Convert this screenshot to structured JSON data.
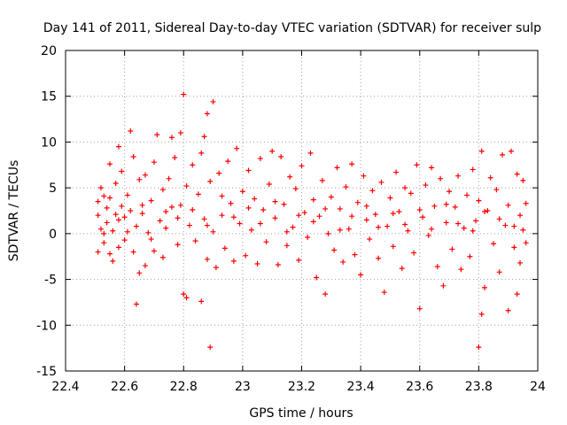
{
  "chart_data": {
    "type": "scatter",
    "title": "Day 141 of 2011, Sidereal Day-to-day VTEC variation (SDTVAR) for receiver sulp",
    "xlabel": "GPS time / hours",
    "ylabel": "SDTVAR / TECUs",
    "xlim": [
      22.4,
      24
    ],
    "ylim": [
      -15,
      20
    ],
    "xticks": [
      22.4,
      22.6,
      22.8,
      23,
      23.2,
      23.4,
      23.6,
      23.8,
      24
    ],
    "xtick_labels": [
      "22.4",
      "22.6",
      "22.8",
      "23",
      "23.2",
      "23.4",
      "23.6",
      "23.8",
      "24"
    ],
    "yticks": [
      -15,
      -10,
      -5,
      0,
      5,
      10,
      15,
      20
    ],
    "ytick_labels": [
      "-15",
      "-10",
      "-5",
      "0",
      "5",
      "10",
      "15",
      "20"
    ],
    "grid": true,
    "marker": "plus",
    "color": "#ff0000",
    "series": [
      {
        "name": "SDTVAR",
        "points": [
          [
            22.51,
            3.5
          ],
          [
            22.51,
            2.0
          ],
          [
            22.51,
            -2.0
          ],
          [
            22.52,
            5.0
          ],
          [
            22.52,
            0.5
          ],
          [
            22.53,
            4.1
          ],
          [
            22.53,
            -1.0
          ],
          [
            22.54,
            2.8
          ],
          [
            22.54,
            1.2
          ],
          [
            22.55,
            7.6
          ],
          [
            22.55,
            3.9
          ],
          [
            22.55,
            -2.2
          ],
          [
            22.56,
            -3.0
          ],
          [
            22.56,
            0.3
          ],
          [
            22.57,
            2.1
          ],
          [
            22.57,
            5.5
          ],
          [
            22.58,
            9.5
          ],
          [
            22.58,
            -1.5
          ],
          [
            22.59,
            3.0
          ],
          [
            22.59,
            6.8
          ],
          [
            22.6,
            1.8
          ],
          [
            22.6,
            -0.7
          ],
          [
            22.61,
            4.2
          ],
          [
            22.62,
            11.2
          ],
          [
            22.62,
            2.5
          ],
          [
            22.63,
            8.4
          ],
          [
            22.63,
            -2.0
          ],
          [
            22.64,
            -7.7
          ],
          [
            22.64,
            0.8
          ],
          [
            22.65,
            5.9
          ],
          [
            22.65,
            -4.3
          ],
          [
            22.66,
            2.2
          ],
          [
            22.67,
            -3.5
          ],
          [
            22.67,
            6.4
          ],
          [
            22.68,
            0.1
          ],
          [
            22.69,
            3.6
          ],
          [
            22.7,
            -1.9
          ],
          [
            22.7,
            7.8
          ],
          [
            22.71,
            10.8
          ],
          [
            22.72,
            1.4
          ],
          [
            22.73,
            4.8
          ],
          [
            22.73,
            -2.6
          ],
          [
            22.74,
            0.6
          ],
          [
            22.75,
            6.0
          ],
          [
            22.76,
            10.5
          ],
          [
            22.76,
            2.9
          ],
          [
            22.77,
            8.3
          ],
          [
            22.78,
            -1.2
          ],
          [
            22.79,
            11.0
          ],
          [
            22.79,
            3.1
          ],
          [
            22.8,
            15.2
          ],
          [
            22.8,
            -6.6
          ],
          [
            22.81,
            5.2
          ],
          [
            22.81,
            -7.0
          ],
          [
            22.82,
            0.9
          ],
          [
            22.83,
            7.5
          ],
          [
            22.84,
            -0.8
          ],
          [
            22.85,
            4.3
          ],
          [
            22.86,
            8.8
          ],
          [
            22.86,
            -7.4
          ],
          [
            22.87,
            10.6
          ],
          [
            22.87,
            1.6
          ],
          [
            22.88,
            13.1
          ],
          [
            22.88,
            -2.8
          ],
          [
            22.89,
            -12.4
          ],
          [
            22.89,
            5.7
          ],
          [
            22.9,
            14.4
          ],
          [
            22.9,
            0.2
          ],
          [
            22.91,
            -3.7
          ],
          [
            22.92,
            6.6
          ],
          [
            22.93,
            2.0
          ],
          [
            22.94,
            -1.6
          ],
          [
            22.95,
            7.9
          ],
          [
            22.96,
            3.3
          ],
          [
            22.97,
            -3.0
          ],
          [
            22.98,
            9.3
          ],
          [
            22.99,
            1.1
          ],
          [
            23.0,
            4.6
          ],
          [
            23.01,
            -2.4
          ],
          [
            23.02,
            6.9
          ],
          [
            23.03,
            0.4
          ],
          [
            23.04,
            3.8
          ],
          [
            23.05,
            -3.3
          ],
          [
            23.06,
            8.2
          ],
          [
            23.07,
            2.6
          ],
          [
            23.08,
            -0.9
          ],
          [
            23.09,
            5.4
          ],
          [
            23.1,
            9.0
          ],
          [
            23.11,
            1.7
          ],
          [
            23.12,
            -3.4
          ],
          [
            23.13,
            8.4
          ],
          [
            23.14,
            3.2
          ],
          [
            23.15,
            -1.3
          ],
          [
            23.16,
            6.2
          ],
          [
            23.17,
            0.7
          ],
          [
            23.18,
            4.9
          ],
          [
            23.19,
            -2.9
          ],
          [
            23.2,
            7.4
          ],
          [
            23.21,
            2.3
          ],
          [
            23.22,
            -0.4
          ],
          [
            23.23,
            8.8
          ],
          [
            23.24,
            3.7
          ],
          [
            23.25,
            -4.8
          ],
          [
            23.26,
            1.9
          ],
          [
            23.27,
            5.8
          ],
          [
            23.28,
            -6.6
          ],
          [
            23.29,
            0.0
          ],
          [
            23.3,
            4.0
          ],
          [
            23.31,
            -1.8
          ],
          [
            23.32,
            7.2
          ],
          [
            23.33,
            2.7
          ],
          [
            23.34,
            -3.1
          ],
          [
            23.35,
            5.1
          ],
          [
            23.36,
            0.5
          ],
          [
            23.37,
            7.6
          ],
          [
            23.38,
            -2.3
          ],
          [
            23.39,
            3.4
          ],
          [
            23.4,
            -4.5
          ],
          [
            23.41,
            6.3
          ],
          [
            23.42,
            1.5
          ],
          [
            23.43,
            -0.6
          ],
          [
            23.44,
            4.7
          ],
          [
            23.45,
            2.1
          ],
          [
            23.46,
            -2.7
          ],
          [
            23.47,
            5.6
          ],
          [
            23.48,
            -6.4
          ],
          [
            23.49,
            0.8
          ],
          [
            23.5,
            3.9
          ],
          [
            23.51,
            -1.4
          ],
          [
            23.52,
            6.7
          ],
          [
            23.53,
            2.4
          ],
          [
            23.54,
            -3.8
          ],
          [
            23.55,
            5.0
          ],
          [
            23.56,
            0.3
          ],
          [
            23.57,
            4.4
          ],
          [
            23.58,
            -2.1
          ],
          [
            23.59,
            7.5
          ],
          [
            23.6,
            -8.2
          ],
          [
            23.61,
            1.8
          ],
          [
            23.62,
            5.3
          ],
          [
            23.63,
            -0.2
          ],
          [
            23.64,
            7.2
          ],
          [
            23.65,
            3.0
          ],
          [
            23.66,
            -3.6
          ],
          [
            23.67,
            6.0
          ],
          [
            23.68,
            -5.7
          ],
          [
            23.69,
            1.2
          ],
          [
            23.7,
            4.6
          ],
          [
            23.71,
            -1.7
          ],
          [
            23.72,
            2.9
          ],
          [
            23.73,
            6.3
          ],
          [
            23.74,
            -3.9
          ],
          [
            23.75,
            0.6
          ],
          [
            23.76,
            4.2
          ],
          [
            23.77,
            -2.5
          ],
          [
            23.78,
            7.0
          ],
          [
            23.79,
            1.4
          ],
          [
            23.8,
            -12.4
          ],
          [
            23.8,
            3.6
          ],
          [
            23.81,
            9.0
          ],
          [
            23.81,
            -8.8
          ],
          [
            23.82,
            -5.9
          ],
          [
            23.83,
            2.5
          ],
          [
            23.84,
            6.1
          ],
          [
            23.85,
            -1.1
          ],
          [
            23.86,
            4.8
          ],
          [
            23.87,
            -4.2
          ],
          [
            23.88,
            8.6
          ],
          [
            23.89,
            0.9
          ],
          [
            23.9,
            -8.4
          ],
          [
            23.9,
            3.1
          ],
          [
            23.91,
            9.0
          ],
          [
            23.92,
            -1.5
          ],
          [
            23.93,
            6.5
          ],
          [
            23.93,
            -6.6
          ],
          [
            23.94,
            2.0
          ],
          [
            23.94,
            -3.2
          ],
          [
            23.95,
            5.8
          ],
          [
            23.95,
            0.4
          ],
          [
            23.96,
            -1.0
          ],
          [
            23.96,
            3.3
          ],
          [
            22.53,
            0.0
          ],
          [
            22.58,
            1.5
          ],
          [
            22.61,
            0.2
          ],
          [
            22.66,
            3.1
          ],
          [
            22.69,
            -0.6
          ],
          [
            22.74,
            2.4
          ],
          [
            22.78,
            1.7
          ],
          [
            22.83,
            2.6
          ],
          [
            22.88,
            0.9
          ],
          [
            22.93,
            4.1
          ],
          [
            22.97,
            1.8
          ],
          [
            23.02,
            2.8
          ],
          [
            23.06,
            1.1
          ],
          [
            23.11,
            3.5
          ],
          [
            23.15,
            0.2
          ],
          [
            23.19,
            2.0
          ],
          [
            23.24,
            1.3
          ],
          [
            23.28,
            2.7
          ],
          [
            23.33,
            0.4
          ],
          [
            23.37,
            1.9
          ],
          [
            23.42,
            3.0
          ],
          [
            23.46,
            0.7
          ],
          [
            23.51,
            2.2
          ],
          [
            23.55,
            1.0
          ],
          [
            23.6,
            2.6
          ],
          [
            23.64,
            0.5
          ],
          [
            23.69,
            3.2
          ],
          [
            23.73,
            1.1
          ],
          [
            23.78,
            0.3
          ],
          [
            23.82,
            2.4
          ],
          [
            23.87,
            1.6
          ],
          [
            23.92,
            0.8
          ]
        ]
      }
    ]
  }
}
